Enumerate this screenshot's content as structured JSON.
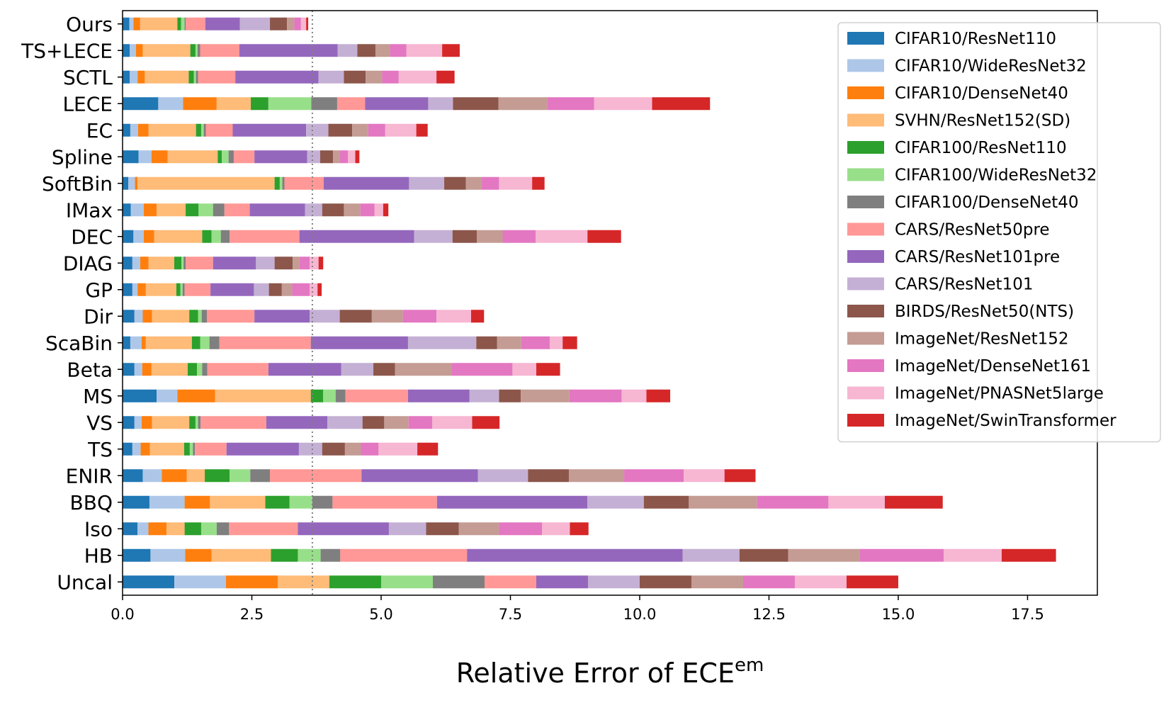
{
  "chart_data": {
    "type": "bar",
    "orientation": "horizontal",
    "stacked": true,
    "xlabel": "Relative Error of ECE",
    "xlabel_superscript": "em",
    "ylabel": "",
    "xlim": [
      0,
      18.85
    ],
    "xticks": [
      "0.0",
      "2.5",
      "5.0",
      "7.5",
      "10.0",
      "12.5",
      "15.0",
      "17.5"
    ],
    "xtick_values": [
      0,
      2.5,
      5,
      7.5,
      10,
      12.5,
      15,
      17.5
    ],
    "grid": false,
    "legend_position": "upper right",
    "reference_line": {
      "x": 3.67,
      "style": "dotted",
      "color": "#808080"
    },
    "categories": [
      "Ours",
      "TS+LECE",
      "SCTL",
      "LECE",
      "EC",
      "Spline",
      "SoftBin",
      "IMax",
      "DEC",
      "DIAG",
      "GP",
      "Dir",
      "ScaBin",
      "Beta",
      "MS",
      "VS",
      "TS",
      "ENIR",
      "BBQ",
      "Iso",
      "HB",
      "Uncal"
    ],
    "series": [
      {
        "name": "CIFAR10/ResNet110",
        "color": "#1f77b4",
        "values": [
          0.13,
          0.14,
          0.14,
          0.69,
          0.15,
          0.31,
          0.11,
          0.16,
          0.21,
          0.19,
          0.19,
          0.23,
          0.15,
          0.23,
          0.66,
          0.23,
          0.19,
          0.39,
          0.52,
          0.29,
          0.54,
          1.0
        ]
      },
      {
        "name": "CIFAR10/WideResNet32",
        "color": "#aec7e8",
        "values": [
          0.08,
          0.12,
          0.15,
          0.48,
          0.15,
          0.25,
          0.13,
          0.25,
          0.2,
          0.15,
          0.1,
          0.16,
          0.22,
          0.15,
          0.4,
          0.14,
          0.16,
          0.37,
          0.68,
          0.21,
          0.67,
          1.0
        ]
      },
      {
        "name": "CIFAR10/DenseNet40",
        "color": "#ff7f0e",
        "values": [
          0.13,
          0.13,
          0.14,
          0.65,
          0.2,
          0.31,
          0.05,
          0.25,
          0.2,
          0.16,
          0.16,
          0.18,
          0.08,
          0.18,
          0.73,
          0.2,
          0.18,
          0.48,
          0.49,
          0.35,
          0.51,
          1.0
        ]
      },
      {
        "name": "SVHN/ResNet152(SD)",
        "color": "#ffbb78",
        "values": [
          0.72,
          0.92,
          0.85,
          0.66,
          0.92,
          0.97,
          2.65,
          0.56,
          0.93,
          0.5,
          0.59,
          0.72,
          0.89,
          0.7,
          1.85,
          0.72,
          0.66,
          0.35,
          1.07,
          0.35,
          1.15,
          1.0
        ]
      },
      {
        "name": "CIFAR100/ResNet110",
        "color": "#2ca02c",
        "values": [
          0.07,
          0.1,
          0.1,
          0.34,
          0.1,
          0.08,
          0.1,
          0.25,
          0.18,
          0.14,
          0.08,
          0.17,
          0.16,
          0.18,
          0.24,
          0.12,
          0.11,
          0.48,
          0.47,
          0.32,
          0.52,
          1.0
        ]
      },
      {
        "name": "CIFAR100/WideResNet32",
        "color": "#98df8a",
        "values": [
          0.07,
          0.04,
          0.04,
          0.83,
          0.05,
          0.13,
          0.05,
          0.28,
          0.18,
          0.04,
          0.04,
          0.07,
          0.18,
          0.1,
          0.24,
          0.05,
          0.06,
          0.4,
          0.44,
          0.3,
          0.44,
          1.0
        ]
      },
      {
        "name": "CIFAR100/DenseNet40",
        "color": "#7f7f7f",
        "values": [
          0.02,
          0.05,
          0.04,
          0.5,
          0.04,
          0.1,
          0.04,
          0.22,
          0.17,
          0.04,
          0.04,
          0.1,
          0.19,
          0.1,
          0.19,
          0.05,
          0.04,
          0.38,
          0.39,
          0.24,
          0.38,
          1.0
        ]
      },
      {
        "name": "CARS/ResNet50pre",
        "color": "#ff9896",
        "values": [
          0.38,
          0.76,
          0.72,
          0.54,
          0.52,
          0.4,
          0.76,
          0.49,
          1.35,
          0.53,
          0.5,
          0.92,
          1.77,
          1.18,
          1.21,
          1.27,
          0.61,
          1.77,
          2.02,
          1.33,
          2.45,
          1.0
        ]
      },
      {
        "name": "CARS/ResNet101pre",
        "color": "#9467bd",
        "values": [
          0.67,
          1.9,
          1.61,
          1.22,
          1.42,
          1.02,
          1.65,
          1.07,
          2.22,
          0.83,
          0.84,
          1.07,
          1.88,
          1.41,
          1.19,
          1.18,
          1.4,
          2.25,
          2.91,
          1.76,
          4.17,
          1.0
        ]
      },
      {
        "name": "CARS/ResNet101",
        "color": "#c5b0d5",
        "values": [
          0.58,
          0.38,
          0.49,
          0.48,
          0.43,
          0.25,
          0.68,
          0.33,
          0.74,
          0.36,
          0.29,
          0.58,
          1.32,
          0.62,
          0.57,
          0.68,
          0.45,
          0.97,
          1.09,
          0.72,
          1.1,
          1.0
        ]
      },
      {
        "name": "BIRDS/ResNet50(NTS)",
        "color": "#8c564b",
        "values": [
          0.33,
          0.35,
          0.42,
          0.88,
          0.46,
          0.25,
          0.42,
          0.42,
          0.47,
          0.35,
          0.25,
          0.62,
          0.4,
          0.42,
          0.42,
          0.42,
          0.44,
          0.79,
          0.87,
          0.63,
          0.94,
          1.0
        ]
      },
      {
        "name": "ImageNet/ResNet152",
        "color": "#c49c94",
        "values": [
          0.14,
          0.28,
          0.32,
          0.94,
          0.31,
          0.13,
          0.3,
          0.32,
          0.5,
          0.13,
          0.2,
          0.6,
          0.47,
          1.1,
          0.94,
          0.47,
          0.31,
          1.07,
          1.32,
          0.78,
          1.39,
          1.0
        ]
      },
      {
        "name": "ImageNet/DenseNet161",
        "color": "#e377c2",
        "values": [
          0.13,
          0.32,
          0.32,
          0.91,
          0.33,
          0.16,
          0.34,
          0.27,
          0.64,
          0.2,
          0.34,
          0.65,
          0.55,
          1.17,
          1.01,
          0.46,
          0.34,
          1.15,
          1.38,
          0.83,
          1.62,
          1.0
        ]
      },
      {
        "name": "ImageNet/PNASNet5large",
        "color": "#f7b6d2",
        "values": [
          0.1,
          0.69,
          0.73,
          1.12,
          0.6,
          0.14,
          0.64,
          0.17,
          1.0,
          0.17,
          0.15,
          0.67,
          0.25,
          0.46,
          0.48,
          0.77,
          0.75,
          0.79,
          1.09,
          0.54,
          1.12,
          1.0
        ]
      },
      {
        "name": "ImageNet/SwinTransformer",
        "color": "#d62728",
        "values": [
          0.04,
          0.34,
          0.35,
          1.12,
          0.22,
          0.08,
          0.24,
          0.1,
          0.65,
          0.09,
          0.08,
          0.25,
          0.28,
          0.46,
          0.46,
          0.53,
          0.4,
          0.6,
          1.12,
          0.36,
          1.05,
          1.0
        ]
      }
    ]
  }
}
